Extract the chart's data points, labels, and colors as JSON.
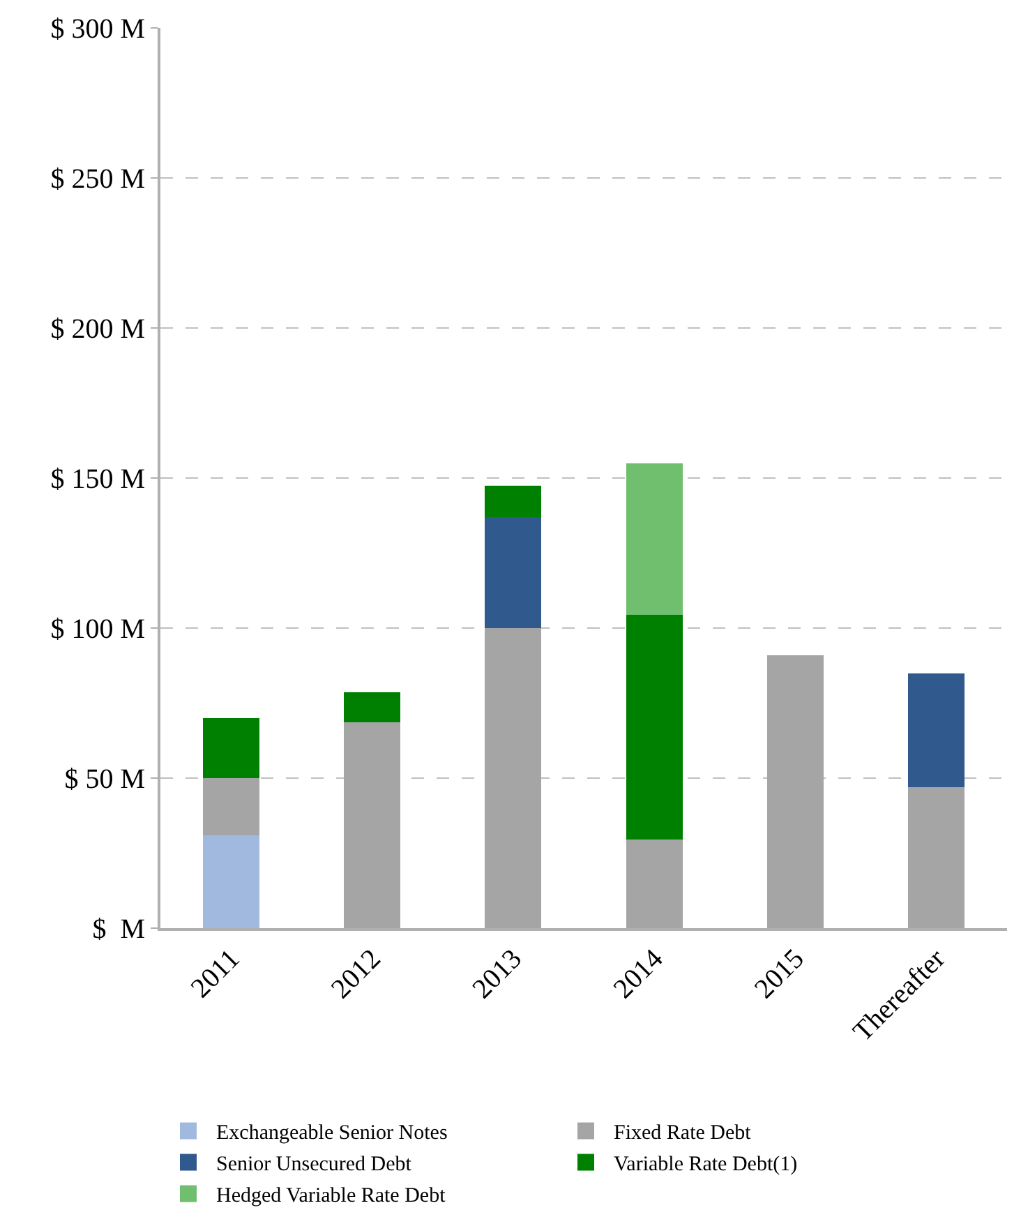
{
  "chart_data": {
    "type": "bar",
    "stacked": true,
    "categories": [
      "2011",
      "2012",
      "2013",
      "2014",
      "2015",
      "Thereafter"
    ],
    "series": [
      {
        "name": "Exchangeable Senior Notes",
        "color": "#a1b9df",
        "values": [
          31,
          null,
          null,
          null,
          null,
          null
        ]
      },
      {
        "name": "Fixed Rate Debt",
        "color": "#a5a5a5",
        "values": [
          19,
          68.5,
          100,
          29.5,
          91,
          47
        ]
      },
      {
        "name": "Senior Unsecured Debt",
        "color": "#30598d",
        "values": [
          null,
          null,
          37,
          null,
          null,
          38
        ]
      },
      {
        "name": "Variable Rate Debt(1)",
        "color": "#008000",
        "values": [
          20,
          10,
          10.5,
          75,
          null,
          null
        ]
      },
      {
        "name": "Hedged Variable Rate Debt",
        "color": "#6fbf6f",
        "values": [
          null,
          null,
          null,
          50.5,
          null,
          null
        ]
      }
    ],
    "ylim": [
      0,
      300
    ],
    "yticks": [
      {
        "value": 0,
        "label": "$  M"
      },
      {
        "value": 50,
        "label": "$ 50 M"
      },
      {
        "value": 100,
        "label": "$ 100 M"
      },
      {
        "value": 150,
        "label": "$ 150 M"
      },
      {
        "value": 200,
        "label": "$ 200 M"
      },
      {
        "value": 250,
        "label": "$ 250 M"
      },
      {
        "value": 300,
        "label": "$ 300 M"
      }
    ],
    "grid": "y",
    "legend": "bottom"
  }
}
